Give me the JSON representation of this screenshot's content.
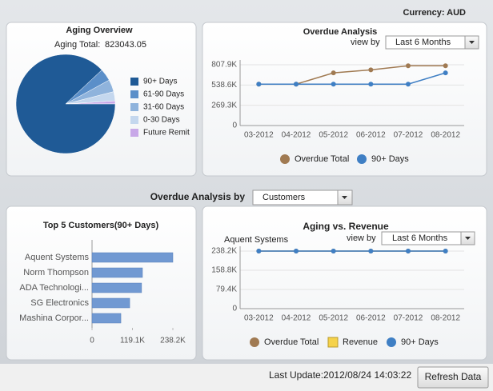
{
  "header": {
    "currency": "Currency: AUD"
  },
  "filter": {
    "label": "Overdue Analysis by",
    "value": "Customers"
  },
  "footer": {
    "last_update": "Last Update:2012/08/24 14:03:22",
    "button": "Refresh Data"
  },
  "chart_data": [
    {
      "type": "pie",
      "title": "Aging Overview",
      "total_label": "Aging Total:",
      "total_value": 823043.05,
      "categories": [
        "90+ Days",
        "61-90 Days",
        "31-60 Days",
        "0-30 Days",
        "Future Remit"
      ],
      "values": [
        88,
        4,
        4,
        3,
        1
      ],
      "colors": [
        "#1f5a96",
        "#5b8fc9",
        "#8fb3dc",
        "#c4d7ee",
        "#c8a8e8"
      ]
    },
    {
      "type": "line",
      "title": "Overdue Analysis",
      "view_by_label": "view by",
      "view_by_value": "Last 6 Months",
      "categories": [
        "03-2012",
        "04-2012",
        "05-2012",
        "06-2012",
        "07-2012",
        "08-2012"
      ],
      "series": [
        {
          "name": "Overdue Total",
          "color": "#a07a52",
          "values": [
            550000,
            550000,
            700000,
            740000,
            795000,
            795000
          ]
        },
        {
          "name": "90+ Days",
          "color": "#3f7fc4",
          "values": [
            550000,
            550000,
            550000,
            550000,
            550000,
            700000
          ]
        }
      ],
      "ylim": [
        0,
        807900
      ],
      "yticks": [
        0,
        {
          "value": 269300,
          "label": "269.3K"
        },
        {
          "value": 538600,
          "label": "538.6K"
        },
        {
          "value": 807900,
          "label": "807.9K"
        }
      ],
      "grid": true,
      "legend": "bottom"
    },
    {
      "type": "hbar",
      "title": "Top 5 Customers(90+ Days)",
      "categories": [
        "Aquent Systems",
        "Norm Thompson",
        "ADA Technologi...",
        "SG Electronics",
        "Mashina Corpor..."
      ],
      "values": [
        238200,
        148600,
        146000,
        111000,
        85000
      ],
      "color": "#7199d2",
      "xlim": [
        0,
        238200
      ],
      "xticks": [
        0,
        {
          "value": 119100,
          "label": "119.1K"
        },
        {
          "value": 238200,
          "label": "238.2K"
        }
      ]
    },
    {
      "type": "line",
      "title": "Aging vs. Revenue",
      "subtitle": "Aquent Systems",
      "view_by_label": "view by",
      "view_by_value": "Last 6 Months",
      "categories": [
        "03-2012",
        "04-2012",
        "05-2012",
        "06-2012",
        "07-2012",
        "08-2012"
      ],
      "series": [
        {
          "name": "Overdue Total",
          "color": "#a07a52",
          "values": [
            238200,
            238200,
            238200,
            238200,
            238200,
            238200
          ]
        },
        {
          "name": "Revenue",
          "color": "#f5d24a",
          "marker": "square",
          "values": [
            null,
            null,
            null,
            null,
            null,
            null
          ]
        },
        {
          "name": "90+ Days",
          "color": "#3f7fc4",
          "values": [
            238200,
            238200,
            238200,
            238200,
            238200,
            238200
          ]
        }
      ],
      "ylim": [
        0,
        238200
      ],
      "yticks": [
        0,
        {
          "value": 79400,
          "label": "79.4K"
        },
        {
          "value": 158800,
          "label": "158.8K"
        },
        {
          "value": 238200,
          "label": "238.2K"
        }
      ],
      "grid": true,
      "legend": "bottom"
    }
  ]
}
